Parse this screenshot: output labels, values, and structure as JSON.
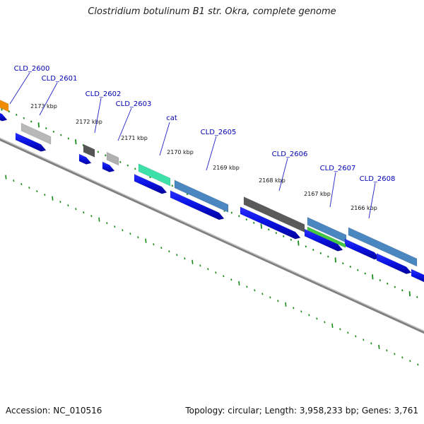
{
  "title": "Clostridium botulinum B1 str. Okra, complete genome",
  "footer": {
    "accession_label": "Accession:",
    "accession": "NC_010516",
    "topology_label": "Topology:",
    "topology": "circular",
    "length_label": "Length:",
    "length": "3,958,233 bp",
    "genes_label": "Genes:",
    "genes": "3,761"
  },
  "scale_unit": "kbp",
  "position_labels": [
    "2173 kbp",
    "2172 kbp",
    "2171 kbp",
    "2170 kbp",
    "2169 kbp",
    "2168 kbp",
    "2167 kbp",
    "2166 kbp"
  ],
  "genes_list": [
    {
      "name": "CLD_2600",
      "color": "#f08c00"
    },
    {
      "name": "CLD_2601",
      "color": "#b8b8b8"
    },
    {
      "name": "CLD_2602",
      "color": "#555555"
    },
    {
      "name": "CLD_2603",
      "color": "#b0b0b0"
    },
    {
      "name": "cat",
      "color": "#3de0a8"
    },
    {
      "name": "CLD_2605",
      "color": "#4a86c0"
    },
    {
      "name": "CLD_2606",
      "color": "#5a5a5a"
    },
    {
      "name": "CLD_2607",
      "color": "#4a86c0"
    },
    {
      "name": "CLD_2608",
      "color": "#4a86c0"
    }
  ],
  "colors": {
    "label": "#0000b4",
    "leader": "#2020c8",
    "cds_arrow": "#0a14e6",
    "backbone": "#808080",
    "ticks": "#1a8a1a",
    "gc_bar": "#44c844"
  }
}
